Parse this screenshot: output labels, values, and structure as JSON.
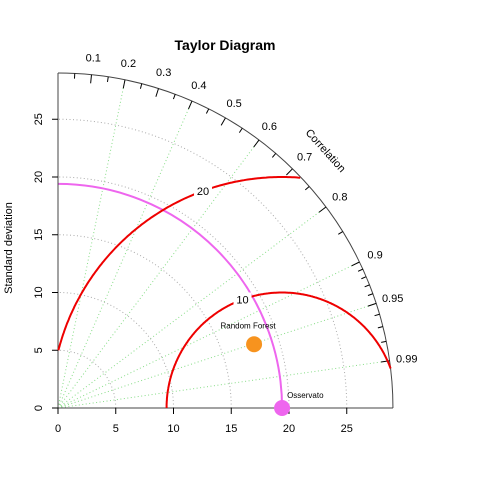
{
  "chart_data": {
    "type": "taylor",
    "title": "Taylor Diagram",
    "ylabel": "Standard deviation",
    "arc_label": "Correlation",
    "sd_max": 29,
    "sd_ticks": [
      0,
      5,
      10,
      15,
      20,
      25
    ],
    "sd_tick_labels": [
      "0",
      "5",
      "10",
      "15",
      "20",
      "25"
    ],
    "correlation_labels": [
      {
        "r": 0.1,
        "label": "0.1"
      },
      {
        "r": 0.2,
        "label": "0.2"
      },
      {
        "r": 0.3,
        "label": "0.3"
      },
      {
        "r": 0.4,
        "label": "0.4"
      },
      {
        "r": 0.5,
        "label": "0.5"
      },
      {
        "r": 0.6,
        "label": "0.6"
      },
      {
        "r": 0.7,
        "label": "0.7"
      },
      {
        "r": 0.8,
        "label": "0.8"
      },
      {
        "r": 0.9,
        "label": "0.9"
      },
      {
        "r": 0.95,
        "label": "0.95"
      },
      {
        "r": 0.99,
        "label": "0.99"
      }
    ],
    "minor_correlations": [
      0.05,
      0.15,
      0.25,
      0.35,
      0.45,
      0.55,
      0.65,
      0.75,
      0.85,
      0.91,
      0.92,
      0.93,
      0.94,
      0.96,
      0.97,
      0.98
    ],
    "grid_correlations": [
      0.2,
      0.4,
      0.6,
      0.8,
      0.9,
      0.95,
      0.99
    ],
    "grid_sd_arcs": [
      5,
      10,
      15,
      20,
      25
    ],
    "reference": {
      "name": "Osservato",
      "sd": 19.4,
      "color": "#ee66ee"
    },
    "rms_arcs": [
      {
        "value": 10,
        "label": "10"
      },
      {
        "value": 20,
        "label": "20"
      }
    ],
    "points": [
      {
        "name": "Random Forest",
        "sd": 17.85,
        "r": 0.951,
        "color": "#f7931e"
      }
    ],
    "colors": {
      "rms": "#ee0000",
      "ref_arc": "#ee66ee",
      "grid_radial": "#88dd88",
      "grid_arc": "#aaaaaa",
      "axis": "#444444"
    }
  }
}
